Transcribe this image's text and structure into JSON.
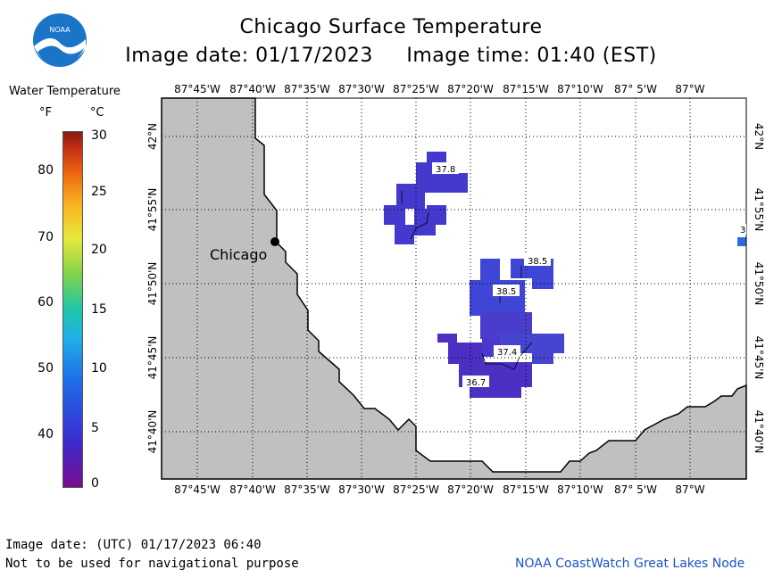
{
  "header": {
    "logo_text": "NOAA",
    "title": "Chicago Surface Temperature",
    "subtitle": "Image date: 01/17/2023     Image time: 01:40 (EST)"
  },
  "legend": {
    "title": "Water Temperature",
    "unit_f": "°F",
    "unit_c": "°C",
    "ticks_f": [
      "80",
      "70",
      "60",
      "50",
      "40"
    ],
    "ticks_c": [
      "30",
      "25",
      "20",
      "15",
      "10",
      "5",
      "0"
    ]
  },
  "map": {
    "lon_labels": [
      "87°45'W",
      "87°40'W",
      "87°35'W",
      "87°30'W",
      "87°25'W",
      "87°20'W",
      "87°15'W",
      "87°10'W",
      "87° 5'W",
      "87°W"
    ],
    "lat_labels": [
      "42°N",
      "41°55'N",
      "41°50'N",
      "41°45'N",
      "41°40'N"
    ],
    "city_label": "Chicago",
    "temp_labels": [
      "37.8",
      "38.5",
      "38.5",
      "37.4",
      "36.7",
      "3"
    ],
    "colors": {
      "land": "#c0c0c0",
      "water": "#ffffff",
      "sst_deep": "#4b2fc8",
      "sst_mid": "#3f46d6",
      "edge_cell": "#2e6ae0"
    }
  },
  "footer": {
    "date_line": "Image date: (UTC) 01/17/2023  06:40",
    "disclaimer": "Not to be used for navigational purpose",
    "credit": "NOAA CoastWatch Great Lakes Node"
  }
}
